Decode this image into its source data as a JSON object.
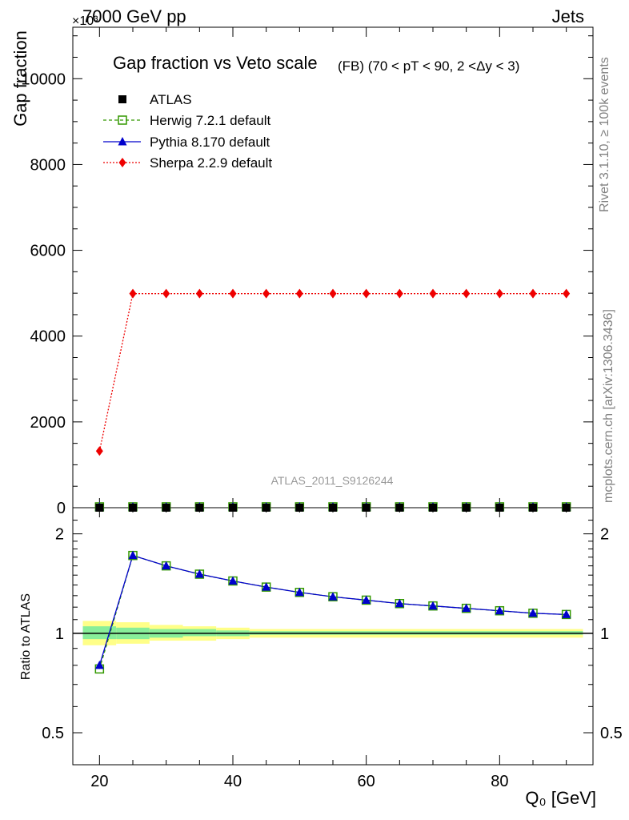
{
  "header": {
    "left": "7000 GeV pp",
    "right": "Jets",
    "exponent": "×10³"
  },
  "side_labels": {
    "rivet": "Rivet 3.1.10, ≥ 100k events",
    "mcplots": "mcplots.cern.ch [arXiv:1306.3436]"
  },
  "colors": {
    "atlas": "#000000",
    "herwig": "#339900",
    "pythia": "#0000cc",
    "sherpa": "#ee0000",
    "band_outer": "#ffff88",
    "band_inner": "#88ee99"
  },
  "chart_data": [
    {
      "type": "line",
      "title": "Gap fraction vs Veto scale",
      "subtitle": "(FB) (70 < pT <  90, 2 <Δy < 3)",
      "ylabel": "Gap fraction",
      "xlabel": "",
      "xlim": [
        16,
        94
      ],
      "ylim": [
        0,
        11200
      ],
      "yticks": [
        0,
        2000,
        4000,
        6000,
        8000,
        10000
      ],
      "ytick_labels": [
        "0",
        "2000",
        "4000",
        "6000",
        "8000",
        "10000"
      ],
      "watermark": "ATLAS_2011_S9126244",
      "legend": [
        "ATLAS",
        "Herwig 7.2.1 default",
        "Pythia 8.170 default",
        "Sherpa 2.2.9 default"
      ],
      "x": [
        20,
        25,
        30,
        35,
        40,
        45,
        50,
        55,
        60,
        65,
        70,
        75,
        80,
        85,
        90
      ],
      "series": [
        {
          "name": "ATLAS",
          "values": [
            0.46,
            0.57,
            0.64,
            0.68,
            0.72,
            0.75,
            0.78,
            0.8,
            0.82,
            0.83,
            0.85,
            0.86,
            0.87,
            0.88,
            0.89
          ]
        },
        {
          "name": "Herwig 7.2.1 default",
          "values": [
            0.36,
            0.98,
            1.0,
            1.0,
            1.0,
            1.0,
            1.0,
            1.0,
            1.0,
            1.0,
            1.0,
            1.0,
            1.0,
            1.0,
            1.0
          ]
        },
        {
          "name": "Pythia 8.170 default",
          "values": [
            0.37,
            0.98,
            1.0,
            1.0,
            1.0,
            1.0,
            1.0,
            1.0,
            1.0,
            1.0,
            1.0,
            1.0,
            1.0,
            1.0,
            1.0
          ]
        },
        {
          "name": "Sherpa 2.2.9 default",
          "values": [
            1320,
            4990,
            4990,
            4990,
            4990,
            4990,
            4990,
            4990,
            4990,
            4990,
            4990,
            4990,
            4990,
            4990,
            4990
          ]
        }
      ]
    },
    {
      "type": "line",
      "title": "",
      "ylabel": "Ratio to ATLAS",
      "xlabel": "Q₀ [GeV]",
      "xlim": [
        16,
        94
      ],
      "ylim": [
        0.4,
        2.4
      ],
      "yscale": "log",
      "yticks": [
        0.5,
        1,
        2
      ],
      "ytick_labels": [
        "0.5",
        "1",
        "2"
      ],
      "xticks": [
        20,
        40,
        60,
        80
      ],
      "xtick_labels": [
        "20",
        "40",
        "60",
        "80"
      ],
      "x": [
        20,
        25,
        30,
        35,
        40,
        45,
        50,
        55,
        60,
        65,
        70,
        75,
        80,
        85,
        90
      ],
      "series": [
        {
          "name": "Herwig 7.2.1 default",
          "values": [
            0.78,
            1.72,
            1.6,
            1.51,
            1.44,
            1.38,
            1.33,
            1.29,
            1.26,
            1.23,
            1.21,
            1.19,
            1.17,
            1.15,
            1.14
          ]
        },
        {
          "name": "Pythia 8.170 default",
          "values": [
            0.8,
            1.72,
            1.6,
            1.51,
            1.44,
            1.38,
            1.33,
            1.29,
            1.26,
            1.23,
            1.21,
            1.19,
            1.17,
            1.15,
            1.14
          ]
        }
      ],
      "bands": [
        {
          "x0": 17.5,
          "x1": 22.5,
          "outer": [
            0.92,
            1.09
          ],
          "inner": [
            0.96,
            1.05
          ]
        },
        {
          "x0": 22.5,
          "x1": 27.5,
          "outer": [
            0.93,
            1.08
          ],
          "inner": [
            0.96,
            1.04
          ]
        },
        {
          "x0": 27.5,
          "x1": 32.5,
          "outer": [
            0.95,
            1.06
          ],
          "inner": [
            0.97,
            1.03
          ]
        },
        {
          "x0": 32.5,
          "x1": 37.5,
          "outer": [
            0.95,
            1.05
          ],
          "inner": [
            0.98,
            1.03
          ]
        },
        {
          "x0": 37.5,
          "x1": 42.5,
          "outer": [
            0.96,
            1.04
          ],
          "inner": [
            0.98,
            1.02
          ]
        },
        {
          "x0": 42.5,
          "x1": 92.5,
          "outer": [
            0.97,
            1.03
          ],
          "inner": [
            0.99,
            1.015
          ]
        }
      ]
    }
  ]
}
